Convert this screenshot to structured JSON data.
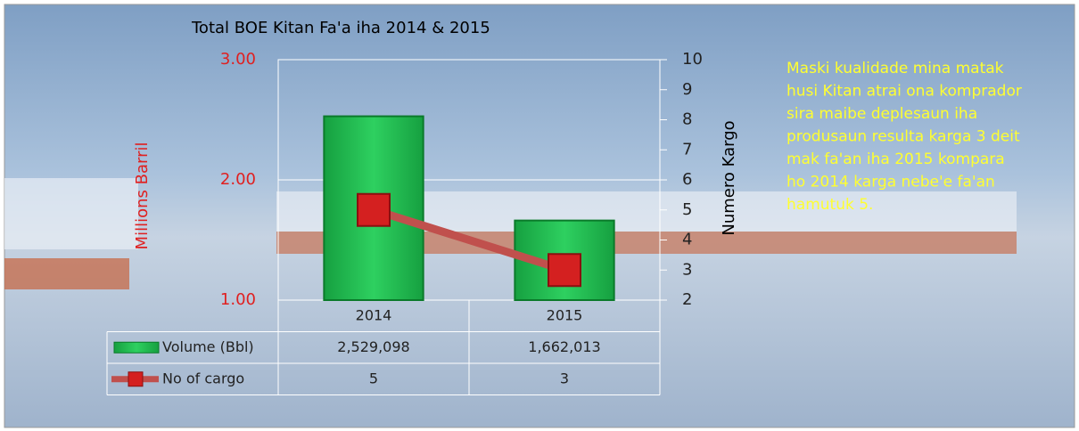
{
  "chart_data": {
    "type": "bar-line",
    "title": "Total BOE Kitan  Fa'a iha  2014 & 2015",
    "y_label": "Millions  Barril",
    "y2_label": "Numero  Kargo",
    "categories": [
      "2014",
      "2015"
    ],
    "series": [
      {
        "name": "Volume (Bbl)",
        "type": "bar",
        "color": "#22b14c",
        "values": [
          2.529098,
          1.662013
        ],
        "value_labels": [
          "2,529,098",
          "1,662,013"
        ]
      },
      {
        "name": "No of cargo",
        "type": "line",
        "axis": "y2",
        "color": "#c0504d",
        "marker_color": "#d42020",
        "values": [
          5,
          3
        ]
      }
    ],
    "ylim": [
      1,
      3
    ],
    "yticks": [
      {
        "value": 1,
        "label": "1.00"
      },
      {
        "value": 2,
        "label": "2.00"
      },
      {
        "value": 3,
        "label": "3.00"
      }
    ],
    "y2lim": [
      2,
      10
    ],
    "y2ticks": [
      2,
      3,
      4,
      5,
      6,
      7,
      8,
      9,
      10
    ],
    "grid": true,
    "annotation": [
      "Maski  kualidade mina matak",
      "husi Kitan atrai ona komprador",
      "sira maibe deplesaun iha",
      "produsaun resulta karga 3 deit",
      "mak fa'an iha 2015 kompara",
      "ho 2014 karga nebe'e fa'an",
      "hamutuk 5."
    ]
  }
}
